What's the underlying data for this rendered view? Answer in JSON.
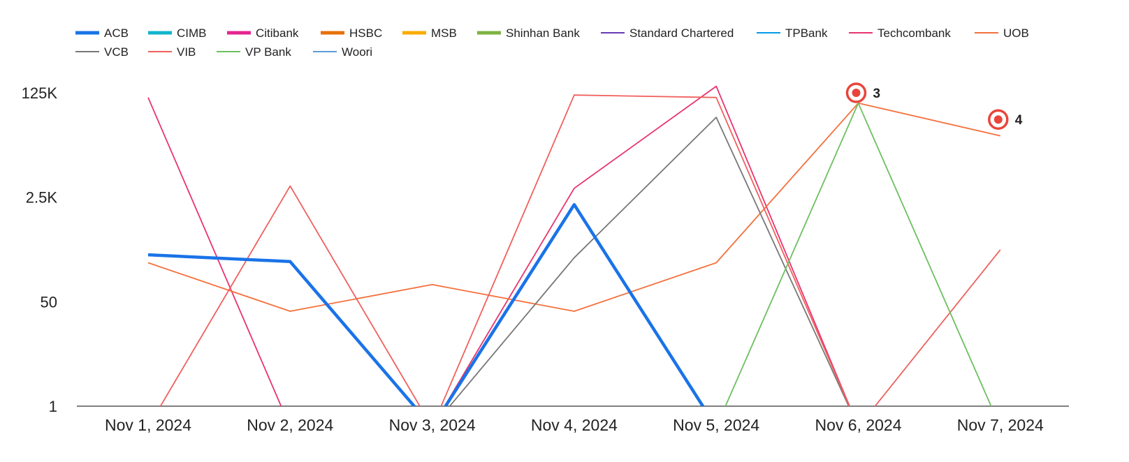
{
  "chart_data": {
    "type": "line",
    "title": "",
    "xlabel": "",
    "ylabel": "",
    "y_scale": "log",
    "y_ticks": [
      {
        "value": 1,
        "label": "1"
      },
      {
        "value": 50,
        "label": "50"
      },
      {
        "value": 2500,
        "label": "2.5K"
      },
      {
        "value": 125000,
        "label": "125K"
      }
    ],
    "ylim": [
      1,
      125000
    ],
    "grid": false,
    "legend_position": "top-left",
    "categories": [
      "Nov 1, 2024",
      "Nov 2, 2024",
      "Nov 3, 2024",
      "Nov 4, 2024",
      "Nov 5, 2024",
      "Nov 6, 2024",
      "Nov 7, 2024"
    ],
    "series": [
      {
        "name": "ACB",
        "color": "#1a73e8",
        "thick": true,
        "values": [
          290,
          225,
          0,
          1900,
          0,
          null,
          null
        ]
      },
      {
        "name": "CIMB",
        "color": "#12b5cb",
        "thick": true,
        "values": [
          null,
          null,
          null,
          null,
          null,
          null,
          null
        ]
      },
      {
        "name": "Citibank",
        "color": "#e52592",
        "thick": true,
        "values": [
          null,
          null,
          null,
          null,
          null,
          null,
          null
        ]
      },
      {
        "name": "HSBC",
        "color": "#e8710a",
        "thick": true,
        "values": [
          null,
          null,
          null,
          null,
          null,
          null,
          null
        ]
      },
      {
        "name": "MSB",
        "color": "#f9ab00",
        "thick": true,
        "values": [
          null,
          null,
          null,
          null,
          null,
          null,
          null
        ]
      },
      {
        "name": "Shinhan Bank",
        "color": "#7cb342",
        "thick": true,
        "values": [
          null,
          null,
          null,
          null,
          null,
          null,
          null
        ]
      },
      {
        "name": "Standard Chartered",
        "color": "#673ab7",
        "thick": false,
        "values": [
          null,
          null,
          null,
          null,
          null,
          null,
          null
        ]
      },
      {
        "name": "TPBank",
        "color": "#039be5",
        "thick": false,
        "values": [
          null,
          null,
          null,
          null,
          null,
          null,
          null
        ]
      },
      {
        "name": "Techcombank",
        "color": "#e8336f",
        "thick": false,
        "values": [
          105000,
          0,
          0,
          3500,
          160000,
          0,
          null
        ]
      },
      {
        "name": "UOB",
        "color": "#f4703c",
        "thick": false,
        "values": [
          215,
          35,
          95,
          35,
          215,
          85000,
          25000
        ]
      },
      {
        "name": "VCB",
        "color": "#777777",
        "thick": false,
        "values": [
          null,
          null,
          0,
          260,
          50000,
          0,
          null
        ]
      },
      {
        "name": "VIB",
        "color": "#f0605d",
        "thick": false,
        "values": [
          0,
          3800,
          0,
          115000,
          105000,
          0,
          350
        ]
      },
      {
        "name": "VP Bank",
        "color": "#6cc05f",
        "thick": false,
        "values": [
          null,
          null,
          null,
          null,
          0,
          85000,
          0
        ]
      },
      {
        "name": "Woori",
        "color": "#5b9bd5",
        "thick": false,
        "values": [
          null,
          null,
          null,
          null,
          null,
          null,
          null
        ]
      }
    ],
    "annotations": [
      {
        "label": "3",
        "category": "Nov 6, 2024",
        "value": 125000,
        "color": "#e8453c"
      },
      {
        "label": "4",
        "category": "Nov 7, 2024",
        "value": 46000,
        "color": "#e8453c"
      }
    ]
  }
}
